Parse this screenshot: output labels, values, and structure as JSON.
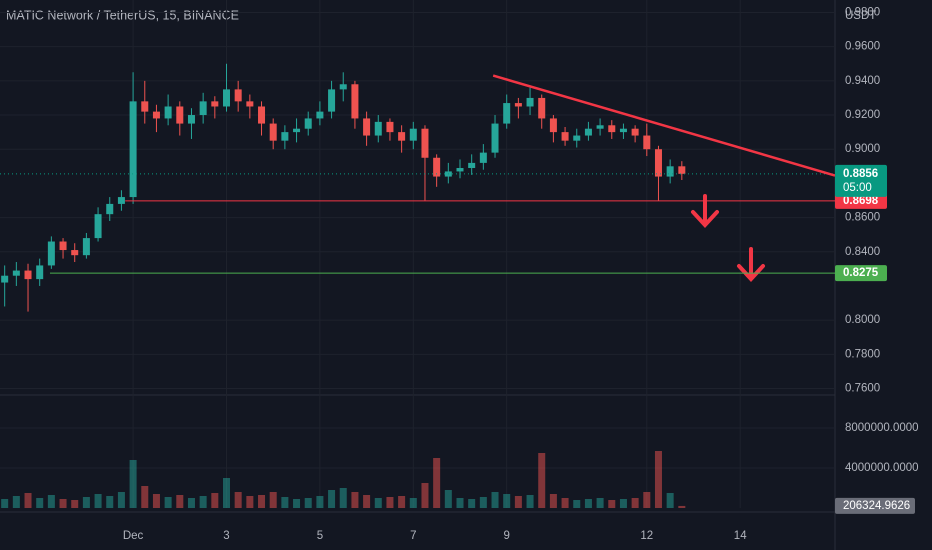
{
  "chart_data": {
    "type": "candlestick",
    "title": "MATIC Network / TetherUS, 15, BINANCE",
    "y_axis_label": "USDT",
    "countdown": "05:00",
    "up_color": "#26a69a",
    "down_color": "#ef5350",
    "xlim": [
      -1.85,
      16.03
    ],
    "xticks": [
      {
        "value": 1,
        "label": "Dec"
      },
      3,
      5,
      7,
      9,
      12,
      14
    ],
    "ylim": [
      0.7562,
      0.9873
    ],
    "yticks": [
      {
        "value": 0.98,
        "label": "0.9800"
      },
      {
        "value": 0.96,
        "label": "0.9600"
      },
      {
        "value": 0.94,
        "label": "0.9400"
      },
      {
        "value": 0.92,
        "label": "0.9200"
      },
      {
        "value": 0.9,
        "label": "0.9000"
      },
      {
        "value": 0.86,
        "label": "0.8600"
      },
      {
        "value": 0.84,
        "label": "0.8400"
      },
      {
        "value": 0.8,
        "label": "0.8000"
      },
      {
        "value": 0.78,
        "label": "0.7800"
      },
      {
        "value": 0.76,
        "label": "0.7600"
      }
    ],
    "vlim": [
      0,
      11300000
    ],
    "vticks": [
      {
        "value": 8000000,
        "label": "8000000.0000"
      },
      {
        "value": 4000000,
        "label": "4000000.0000"
      }
    ],
    "grid": true,
    "x": [
      -1.75,
      -1.5,
      -1.25,
      -1,
      -0.75,
      -0.5,
      -0.25,
      0,
      0.25,
      0.5,
      0.75,
      1,
      1.25,
      1.5,
      1.75,
      2,
      2.25,
      2.5,
      2.75,
      3,
      3.25,
      3.5,
      3.75,
      4,
      4.25,
      4.5,
      4.75,
      5,
      5.25,
      5.5,
      5.75,
      6,
      6.25,
      6.5,
      6.75,
      7,
      7.25,
      7.5,
      7.75,
      8,
      8.25,
      8.5,
      8.75,
      9,
      9.25,
      9.5,
      9.75,
      10,
      10.25,
      10.5,
      10.75,
      11,
      11.25,
      11.5,
      11.75,
      12,
      12.25,
      12.5,
      12.75
    ],
    "open": [
      0.822,
      0.826,
      0.829,
      0.824,
      0.832,
      0.846,
      0.841,
      0.838,
      0.848,
      0.862,
      0.868,
      0.872,
      0.928,
      0.922,
      0.918,
      0.925,
      0.915,
      0.92,
      0.928,
      0.925,
      0.935,
      0.928,
      0.925,
      0.915,
      0.905,
      0.91,
      0.912,
      0.918,
      0.922,
      0.935,
      0.938,
      0.918,
      0.908,
      0.916,
      0.91,
      0.905,
      0.912,
      0.895,
      0.884,
      0.887,
      0.889,
      0.892,
      0.898,
      0.915,
      0.927,
      0.925,
      0.93,
      0.918,
      0.91,
      0.905,
      0.908,
      0.912,
      0.914,
      0.91,
      0.912,
      0.908,
      0.9,
      0.884,
      0.89
    ],
    "high": [
      0.832,
      0.834,
      0.833,
      0.836,
      0.849,
      0.848,
      0.845,
      0.851,
      0.866,
      0.872,
      0.876,
      0.945,
      0.94,
      0.926,
      0.932,
      0.928,
      0.924,
      0.933,
      0.931,
      0.95,
      0.94,
      0.932,
      0.928,
      0.918,
      0.914,
      0.918,
      0.922,
      0.928,
      0.94,
      0.945,
      0.94,
      0.922,
      0.92,
      0.918,
      0.914,
      0.916,
      0.914,
      0.897,
      0.892,
      0.894,
      0.897,
      0.903,
      0.92,
      0.932,
      0.93,
      0.936,
      0.932,
      0.92,
      0.913,
      0.912,
      0.916,
      0.918,
      0.917,
      0.915,
      0.914,
      0.915,
      0.902,
      0.894,
      0.893
    ],
    "low": [
      0.808,
      0.82,
      0.805,
      0.82,
      0.83,
      0.836,
      0.834,
      0.836,
      0.846,
      0.858,
      0.864,
      0.868,
      0.915,
      0.91,
      0.914,
      0.908,
      0.906,
      0.915,
      0.918,
      0.922,
      0.922,
      0.918,
      0.908,
      0.9,
      0.9,
      0.904,
      0.908,
      0.914,
      0.918,
      0.928,
      0.912,
      0.902,
      0.904,
      0.905,
      0.898,
      0.9,
      0.87,
      0.878,
      0.88,
      0.883,
      0.885,
      0.888,
      0.895,
      0.912,
      0.918,
      0.92,
      0.912,
      0.904,
      0.902,
      0.901,
      0.905,
      0.908,
      0.906,
      0.906,
      0.904,
      0.896,
      0.87,
      0.88,
      0.882
    ],
    "close": [
      0.826,
      0.829,
      0.824,
      0.832,
      0.846,
      0.841,
      0.838,
      0.848,
      0.862,
      0.868,
      0.872,
      0.928,
      0.922,
      0.918,
      0.925,
      0.915,
      0.92,
      0.928,
      0.925,
      0.935,
      0.928,
      0.925,
      0.915,
      0.905,
      0.91,
      0.912,
      0.918,
      0.922,
      0.935,
      0.938,
      0.918,
      0.908,
      0.916,
      0.91,
      0.905,
      0.912,
      0.895,
      0.884,
      0.887,
      0.889,
      0.892,
      0.898,
      0.915,
      0.927,
      0.925,
      0.93,
      0.918,
      0.91,
      0.905,
      0.908,
      0.912,
      0.914,
      0.91,
      0.912,
      0.908,
      0.9,
      0.884,
      0.89,
      0.8856
    ],
    "volume": [
      900000,
      1200000,
      1500000,
      1000000,
      1300000,
      900000,
      800000,
      1100000,
      1400000,
      1200000,
      1600000,
      4800000,
      2200000,
      1400000,
      1100000,
      1300000,
      1000000,
      1200000,
      1500000,
      3000000,
      1600000,
      1200000,
      1300000,
      1600000,
      1100000,
      900000,
      1000000,
      1200000,
      1800000,
      2000000,
      1600000,
      1300000,
      1000000,
      1100000,
      1200000,
      1000000,
      2500000,
      5000000,
      1800000,
      1000000,
      900000,
      1100000,
      1600000,
      1400000,
      1200000,
      1300000,
      5500000,
      1400000,
      1000000,
      800000,
      900000,
      1000000,
      800000,
      900000,
      1000000,
      1600000,
      5700000,
      1500000,
      206324.9626
    ],
    "levels": [
      {
        "value": 0.8698,
        "x_start": 0.83,
        "color": "#f23645"
      },
      {
        "value": 0.8275,
        "x_start": -0.78,
        "color": "#4caf50"
      }
    ],
    "trendline": {
      "x": [
        8.71,
        16.03
      ],
      "y": [
        0.9431,
        0.8846
      ],
      "color": "#f23645"
    },
    "last_price_color": "#089981"
  }
}
